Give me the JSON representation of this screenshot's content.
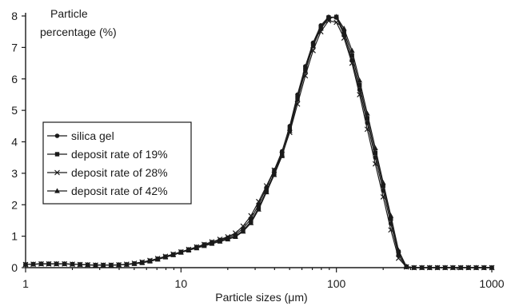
{
  "chart_data": {
    "type": "line",
    "ylabel_line1": "Particle",
    "ylabel_line2": "percentage (%)",
    "xlabel": "Particle sizes (μm)",
    "x_scale": "log",
    "xlim": [
      1,
      1000
    ],
    "ylim": [
      0,
      8
    ],
    "x_ticks": [
      1,
      10,
      100,
      1000
    ],
    "x_tick_labels": [
      "1",
      "10",
      "100",
      "1000"
    ],
    "y_ticks": [
      0,
      1,
      2,
      3,
      4,
      5,
      6,
      7,
      8
    ],
    "y_tick_labels": [
      "0",
      "1",
      "2",
      "3",
      "4",
      "5",
      "6",
      "7",
      "8"
    ],
    "grid": false,
    "legend_position": "middle-left",
    "x": [
      1,
      1.12,
      1.26,
      1.41,
      1.58,
      1.78,
      2,
      2.24,
      2.51,
      2.82,
      3.16,
      3.55,
      3.98,
      4.47,
      5.01,
      5.62,
      6.31,
      7.08,
      7.94,
      8.91,
      10,
      11.2,
      12.6,
      14.1,
      15.8,
      17.8,
      20,
      22.4,
      25.1,
      28.2,
      31.6,
      35.5,
      39.8,
      44.7,
      50.1,
      56.2,
      63.1,
      70.8,
      79.4,
      89.1,
      100,
      112,
      126,
      141,
      158,
      178,
      200,
      224,
      251,
      282,
      316,
      355,
      398,
      447,
      501,
      562,
      631,
      708,
      794,
      891,
      1000
    ],
    "series": [
      {
        "name": "silica gel",
        "marker": "circle",
        "values": [
          0.1,
          0.11,
          0.12,
          0.12,
          0.12,
          0.12,
          0.11,
          0.1,
          0.09,
          0.08,
          0.08,
          0.08,
          0.09,
          0.1,
          0.13,
          0.17,
          0.22,
          0.28,
          0.35,
          0.42,
          0.5,
          0.58,
          0.66,
          0.74,
          0.81,
          0.88,
          0.95,
          1.05,
          1.25,
          1.55,
          2.0,
          2.55,
          3.1,
          3.7,
          4.5,
          5.5,
          6.4,
          7.15,
          7.7,
          7.97,
          7.95,
          7.4,
          6.6,
          5.65,
          4.6,
          3.5,
          2.45,
          1.4,
          0.4,
          0.02,
          0,
          0,
          0,
          0,
          0,
          0,
          0,
          0,
          0,
          0,
          0
        ]
      },
      {
        "name": "deposit rate of 19%",
        "marker": "square",
        "values": [
          0.1,
          0.11,
          0.12,
          0.12,
          0.12,
          0.12,
          0.11,
          0.1,
          0.09,
          0.08,
          0.08,
          0.08,
          0.09,
          0.1,
          0.13,
          0.17,
          0.22,
          0.28,
          0.35,
          0.42,
          0.5,
          0.57,
          0.64,
          0.71,
          0.78,
          0.85,
          0.92,
          1.0,
          1.18,
          1.47,
          1.9,
          2.45,
          3.0,
          3.6,
          4.4,
          5.4,
          6.3,
          7.1,
          7.65,
          7.95,
          7.97,
          7.5,
          6.75,
          5.8,
          4.75,
          3.65,
          2.6,
          1.55,
          0.5,
          0.03,
          0,
          0,
          0,
          0,
          0,
          0,
          0,
          0,
          0,
          0,
          0
        ]
      },
      {
        "name": "deposit rate of 28%",
        "marker": "x",
        "values": [
          0.1,
          0.11,
          0.12,
          0.12,
          0.12,
          0.12,
          0.11,
          0.1,
          0.09,
          0.08,
          0.08,
          0.08,
          0.09,
          0.11,
          0.14,
          0.18,
          0.23,
          0.29,
          0.36,
          0.43,
          0.5,
          0.58,
          0.66,
          0.74,
          0.82,
          0.9,
          0.98,
          1.1,
          1.32,
          1.65,
          2.1,
          2.6,
          3.1,
          3.6,
          4.3,
          5.2,
          6.1,
          6.9,
          7.5,
          7.85,
          7.8,
          7.3,
          6.5,
          5.5,
          4.4,
          3.3,
          2.25,
          1.2,
          0.3,
          0.02,
          0,
          0,
          0,
          0,
          0,
          0,
          0,
          0,
          0,
          0,
          0
        ]
      },
      {
        "name": "deposit rate of 42%",
        "marker": "triangle",
        "values": [
          0.1,
          0.11,
          0.12,
          0.12,
          0.12,
          0.12,
          0.11,
          0.1,
          0.09,
          0.08,
          0.08,
          0.08,
          0.09,
          0.1,
          0.12,
          0.15,
          0.2,
          0.26,
          0.33,
          0.4,
          0.48,
          0.55,
          0.62,
          0.69,
          0.76,
          0.83,
          0.9,
          0.98,
          1.15,
          1.42,
          1.85,
          2.4,
          2.95,
          3.55,
          4.35,
          5.35,
          6.25,
          7.05,
          7.6,
          7.92,
          7.98,
          7.6,
          6.9,
          5.95,
          4.9,
          3.8,
          2.7,
          1.65,
          0.55,
          0.04,
          0,
          0,
          0,
          0,
          0,
          0,
          0,
          0,
          0,
          0,
          0
        ]
      }
    ]
  }
}
